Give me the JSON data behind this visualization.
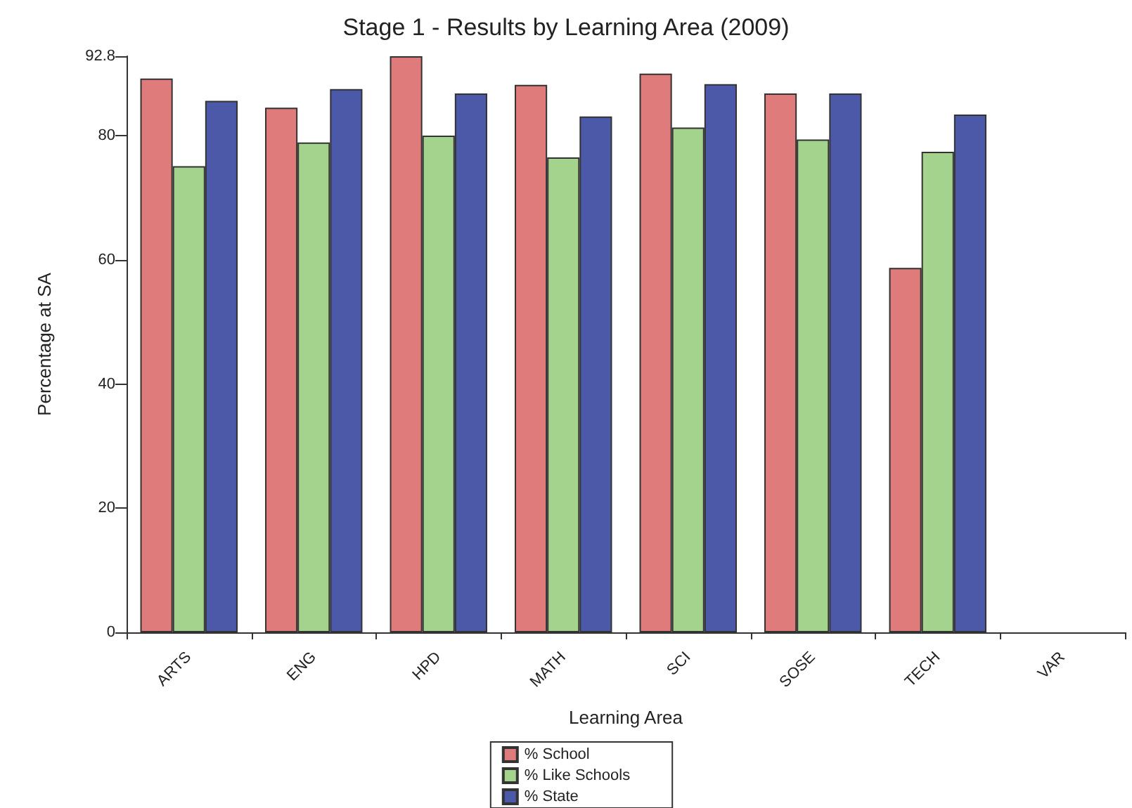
{
  "chart_data": {
    "type": "bar",
    "title": "Stage 1 - Results by Learning Area (2009)",
    "xlabel": "Learning Area",
    "ylabel": "Percentage at SA",
    "categories": [
      "ARTS",
      "ENG",
      "HPD",
      "MATH",
      "SCI",
      "SOSE",
      "TECH",
      "VAR"
    ],
    "series": [
      {
        "name": "% School",
        "color": "#e07b7b",
        "values": [
          89.2,
          84.5,
          92.8,
          88.2,
          90.0,
          86.8,
          58.7,
          null
        ]
      },
      {
        "name": "% Like Schools",
        "color": "#a3d38d",
        "values": [
          75.1,
          78.9,
          80.0,
          76.5,
          81.3,
          79.4,
          77.4,
          null
        ]
      },
      {
        "name": "% State",
        "color": "#4b59a8",
        "values": [
          85.6,
          87.5,
          86.8,
          83.1,
          88.3,
          86.8,
          83.4,
          null
        ]
      }
    ],
    "ylim": [
      0,
      92.8
    ],
    "yticks": [
      0,
      20,
      40,
      60,
      80,
      92.8
    ],
    "grid": false,
    "legend": "bottom"
  }
}
